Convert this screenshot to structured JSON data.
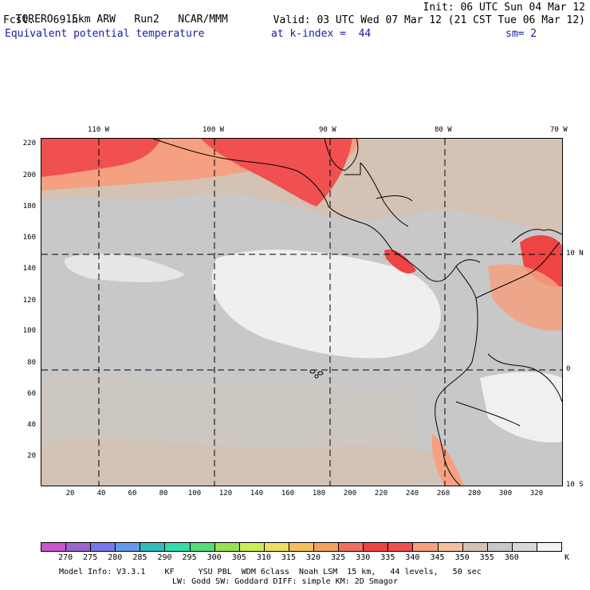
{
  "header": {
    "model": "TORERO",
    "resolution": "15km ARW",
    "run": "Run2",
    "org": "NCAR/MMM",
    "init": "Init: 06 UTC Sun 04 Mar 12",
    "fcst_label": "Fcst.",
    "fcst_hours": "69 h",
    "valid": "Valid: 03 UTC Wed 07 Mar 12 (21 CST Tue 06 Mar 12)",
    "field": "Equivalent potential temperature",
    "level": "at k-index =  44",
    "smooth": "sm= 2"
  },
  "map": {
    "lon_labels": [
      "110 W",
      "100 W",
      "90 W",
      "80 W",
      "70 W"
    ],
    "lat_labels_right": [
      "10 N",
      "0",
      "10 S"
    ],
    "y_ticks": [
      "220",
      "200",
      "180",
      "160",
      "140",
      "120",
      "100",
      "80",
      "60",
      "40",
      "20"
    ],
    "x_ticks": [
      "20",
      "40",
      "60",
      "80",
      "100",
      "120",
      "140",
      "160",
      "180",
      "200",
      "220",
      "240",
      "260",
      "280",
      "300",
      "320"
    ]
  },
  "colorbar": {
    "colors": [
      "#cc55cc",
      "#9966cc",
      "#7777ee",
      "#6699ee",
      "#33bbbb",
      "#33ddaa",
      "#55dd77",
      "#99e055",
      "#ccee55",
      "#eedd66",
      "#f5c060",
      "#f5a060",
      "#f07060",
      "#ee4444",
      "#f05050",
      "#f5a080",
      "#f5c0a0",
      "#d4c2b4",
      "#c8c8c8",
      "#d8d8d8",
      "#f2f2f2"
    ],
    "labels": [
      "270",
      "275",
      "280",
      "285",
      "290",
      "295",
      "300",
      "305",
      "310",
      "315",
      "320",
      "325",
      "330",
      "335",
      "340",
      "345",
      "350",
      "355",
      "360"
    ],
    "unit": "K"
  },
  "footer": {
    "line1": "Model Info: V3.3.1    KF     YSU PBL  WDM 6class  Noah LSM  15 km,   44 levels,   50 sec",
    "line2": "LW: Godd SW: Goddard DIFF: simple KM: 2D Smagor"
  }
}
